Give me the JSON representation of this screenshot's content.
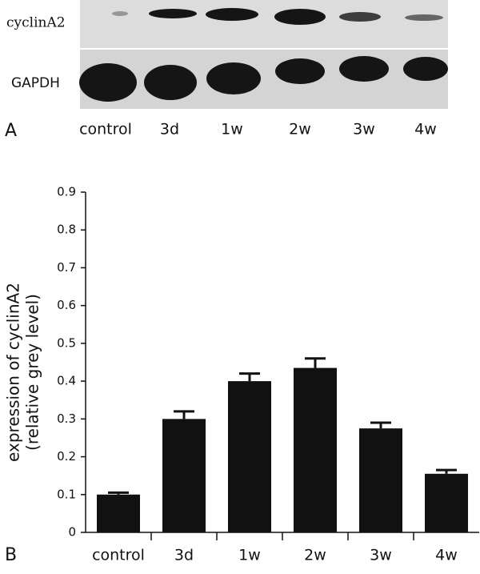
{
  "panel_a": {
    "label": "A",
    "rows": [
      "cyclinA2",
      "GAPDH"
    ]
  },
  "chart_data": {
    "type": "bar",
    "panel_label": "B",
    "ylabel": [
      "expression of cyclinA2",
      "(relative grey level)"
    ],
    "categories": [
      "control",
      "3d",
      "1w",
      "2w",
      "3w",
      "4w"
    ],
    "values": [
      0.1,
      0.3,
      0.4,
      0.435,
      0.275,
      0.155
    ],
    "errors": [
      0.005,
      0.02,
      0.02,
      0.025,
      0.015,
      0.01
    ],
    "color": "#111111",
    "ylim": [
      0,
      0.9
    ],
    "yticks": [
      0,
      0.1,
      0.2,
      0.3,
      0.4,
      0.5,
      0.6,
      0.7,
      0.8,
      0.9
    ]
  }
}
